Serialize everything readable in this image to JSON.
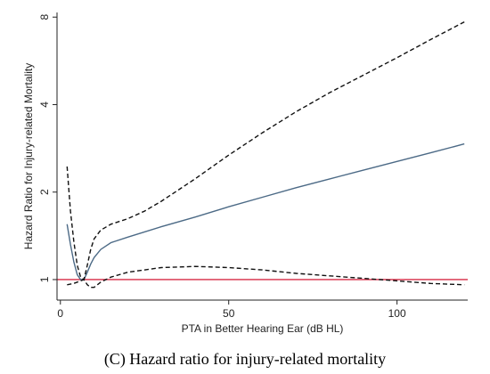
{
  "caption": "(C) Hazard ratio for injury-related mortality",
  "chart_data": {
    "type": "line",
    "title": "",
    "xlabel": "PTA in Better Hearing Ear (dB HL)",
    "ylabel": "Hazard Ratio for Injury-related Mortality",
    "xlim": [
      -1,
      121
    ],
    "ylim": [
      0.85,
      8.3
    ],
    "yscale": "log",
    "xticks": [
      0,
      50,
      100
    ],
    "yticks": [
      1,
      2,
      4,
      8
    ],
    "grid": false,
    "reference_line": {
      "y": 1,
      "color": "#d62a45"
    },
    "series": [
      {
        "role": "estimate",
        "color": "#4c6a86",
        "dash": "solid",
        "x": [
          2,
          3,
          4,
          5,
          6,
          7,
          8,
          9,
          10,
          12,
          15,
          20,
          30,
          40,
          50,
          60,
          70,
          80,
          90,
          100,
          110,
          120
        ],
        "y": [
          1.55,
          1.32,
          1.15,
          1.04,
          1.0,
          1.0,
          1.06,
          1.13,
          1.19,
          1.27,
          1.34,
          1.4,
          1.52,
          1.64,
          1.78,
          1.92,
          2.07,
          2.22,
          2.38,
          2.55,
          2.73,
          2.93
        ]
      },
      {
        "role": "upper-ci",
        "color": "#111111",
        "dash": "dashed",
        "x": [
          2,
          3,
          4,
          5,
          6,
          7,
          8,
          9,
          10,
          12,
          15,
          20,
          25,
          30,
          40,
          50,
          60,
          70,
          80,
          90,
          100,
          110,
          120
        ],
        "y": [
          2.45,
          1.72,
          1.35,
          1.12,
          1.02,
          1.0,
          1.12,
          1.27,
          1.38,
          1.48,
          1.55,
          1.62,
          1.72,
          1.86,
          2.22,
          2.68,
          3.2,
          3.78,
          4.4,
          5.05,
          5.8,
          6.7,
          7.7
        ]
      },
      {
        "role": "lower-ci",
        "color": "#111111",
        "dash": "dashed",
        "x": [
          2,
          4,
          6,
          7,
          8,
          9,
          10,
          11,
          12,
          15,
          20,
          30,
          40,
          50,
          60,
          70,
          80,
          90,
          100,
          110,
          120
        ],
        "y": [
          0.96,
          0.97,
          0.99,
          1.0,
          0.96,
          0.94,
          0.94,
          0.96,
          0.98,
          1.02,
          1.06,
          1.1,
          1.11,
          1.1,
          1.08,
          1.05,
          1.03,
          1.01,
          0.99,
          0.97,
          0.96
        ]
      }
    ]
  }
}
